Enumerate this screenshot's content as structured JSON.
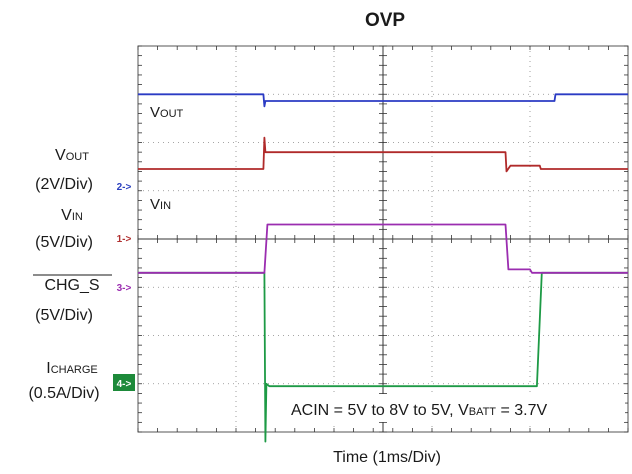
{
  "chart_data": {
    "type": "line",
    "title": "OVP",
    "xlabel": "Time (1ms/Div)",
    "annotation": {
      "text_a": "ACIN = 5V to 8V to 5V, V",
      "text_sub": "BATT",
      "text_b": " = 3.7V"
    },
    "x_divisions": 5,
    "y_divisions": 8,
    "xlim": [
      0,
      5
    ],
    "ylim": [
      0,
      8
    ],
    "trace_labels": {
      "vout": {
        "main": "V",
        "sub": "OUT"
      },
      "vin": {
        "main": "V",
        "sub": "IN"
      }
    },
    "channel_labels": [
      {
        "name_main": "V",
        "name_sub": "OUT",
        "scale": "(2V/Div)",
        "marker": "2->",
        "color": "#2a3fbf",
        "filled": false
      },
      {
        "name_main": "V",
        "name_sub": "IN",
        "scale": "(5V/Div)",
        "marker": "1->",
        "color": "#b03030",
        "filled": false
      },
      {
        "name_main": "CHG_S",
        "name_sub": "",
        "scale": "(5V/Div)",
        "marker": "3->",
        "color": "#9b2db0",
        "filled": false,
        "overline": true
      },
      {
        "name_main": "I",
        "name_sub": "CHARGE",
        "scale": "(0.5A/Div)",
        "marker": "4->",
        "color": "#1d8a3a",
        "filled": true
      }
    ],
    "series": [
      {
        "name": "VOUT",
        "color": "#2b3bc4",
        "points": [
          [
            0,
            7.0
          ],
          [
            1.28,
            7.0
          ],
          [
            1.29,
            6.75
          ],
          [
            1.3,
            6.86
          ],
          [
            4.25,
            6.86
          ],
          [
            4.26,
            7.0
          ],
          [
            5,
            7.0
          ]
        ]
      },
      {
        "name": "VIN",
        "color": "#b02a2a",
        "points": [
          [
            0,
            5.45
          ],
          [
            1.28,
            5.45
          ],
          [
            1.29,
            6.1
          ],
          [
            1.3,
            5.8
          ],
          [
            3.75,
            5.8
          ],
          [
            3.76,
            5.4
          ],
          [
            3.8,
            5.52
          ],
          [
            4.1,
            5.52
          ],
          [
            4.11,
            5.45
          ],
          [
            5,
            5.45
          ]
        ]
      },
      {
        "name": "CHG_S",
        "color": "#9b2db0",
        "points": [
          [
            0,
            3.3
          ],
          [
            1.29,
            3.3
          ],
          [
            1.32,
            4.3
          ],
          [
            3.75,
            4.3
          ],
          [
            3.78,
            3.37
          ],
          [
            4.0,
            3.37
          ],
          [
            4.02,
            3.3
          ],
          [
            5,
            3.3
          ]
        ]
      },
      {
        "name": "ICHARGE",
        "color": "#1d9a45",
        "points": [
          [
            0,
            3.3
          ],
          [
            1.29,
            3.3
          ],
          [
            1.3,
            -0.2
          ],
          [
            1.31,
            1.0
          ],
          [
            1.34,
            0.95
          ],
          [
            4.07,
            0.95
          ],
          [
            4.12,
            3.3
          ],
          [
            5,
            3.3
          ]
        ]
      }
    ]
  }
}
